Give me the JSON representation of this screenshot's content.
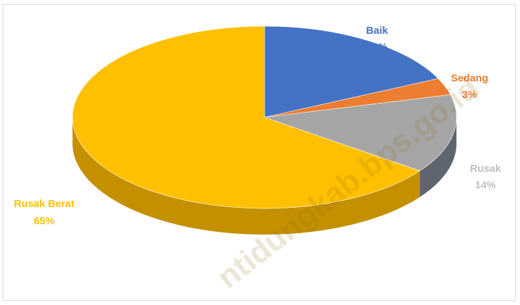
{
  "chart_data": {
    "type": "pie",
    "title": "",
    "start_angle_deg": 0,
    "slices": [
      {
        "label": "Baik",
        "value": 18,
        "value_label": "18%",
        "color": "#4472C4",
        "side_color": "#2F528F"
      },
      {
        "label": "Sedang",
        "value": 3,
        "value_label": "3%",
        "color": "#ED7D31",
        "side_color": "#B55E22"
      },
      {
        "label": "Rusak",
        "value": 14,
        "value_label": "14%",
        "color": "#A5A5A5",
        "side_color": "#5E6470"
      },
      {
        "label": "Rusak Berat",
        "value": 65,
        "value_label": "65%",
        "color": "#FFC000",
        "side_color": "#C49000"
      }
    ]
  },
  "watermark": "ntidungkab.bps.go.id"
}
